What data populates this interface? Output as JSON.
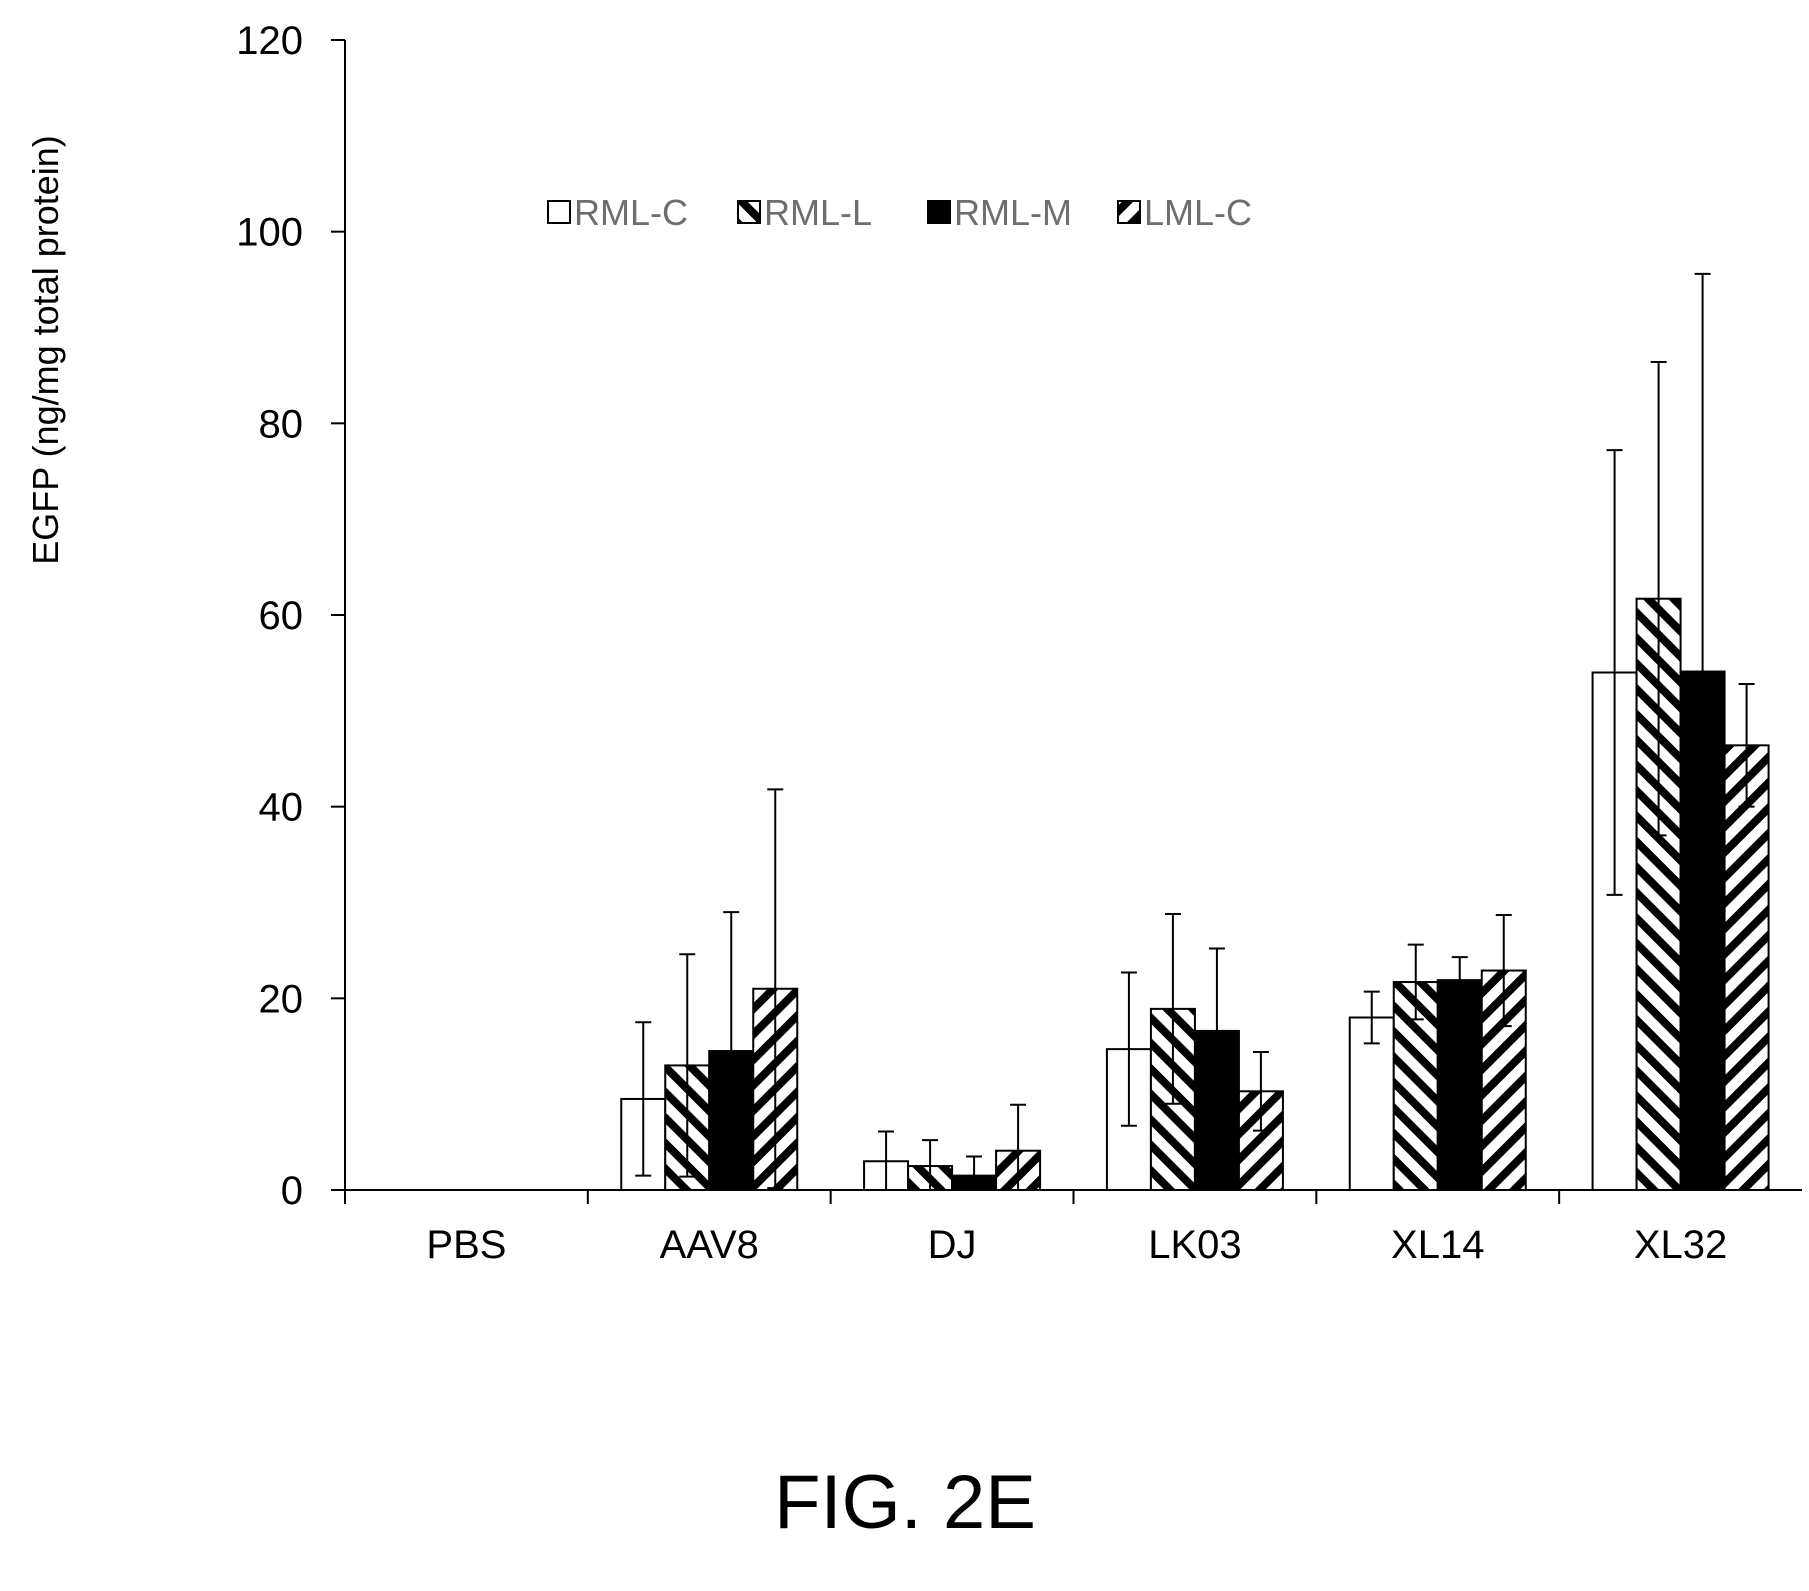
{
  "caption": "FIG. 2E",
  "chart_data": {
    "type": "bar",
    "title": "",
    "xlabel": "",
    "ylabel": "EGFP (ng/mg total protein)",
    "ylim": [
      0,
      120
    ],
    "yticks": [
      0,
      20,
      40,
      60,
      80,
      100,
      120
    ],
    "grid": false,
    "legend_position": "top-center",
    "categories": [
      "PBS",
      "AAV8",
      "DJ",
      "LK03",
      "XL14",
      "XL32"
    ],
    "series": [
      {
        "name": "RML-C",
        "pattern": "open",
        "values": [
          0,
          9.5,
          3.0,
          14.7,
          18.0,
          54.0
        ],
        "errors": [
          0,
          8.0,
          3.1,
          8.0,
          2.7,
          23.2
        ]
      },
      {
        "name": "RML-L",
        "pattern": "hatch-back",
        "values": [
          0,
          13.0,
          2.5,
          18.9,
          21.7,
          61.7
        ],
        "errors": [
          0,
          11.6,
          2.7,
          9.9,
          3.9,
          24.7
        ]
      },
      {
        "name": "RML-M",
        "pattern": "solid",
        "values": [
          0,
          14.5,
          1.5,
          16.6,
          21.9,
          54.1
        ],
        "errors": [
          0,
          14.5,
          2.0,
          8.6,
          2.4,
          41.5
        ]
      },
      {
        "name": "LML-C",
        "pattern": "hatch-forward",
        "values": [
          0,
          21.0,
          4.1,
          10.3,
          22.9,
          46.4
        ],
        "errors": [
          0,
          20.8,
          4.8,
          4.1,
          5.8,
          6.4
        ]
      }
    ]
  }
}
